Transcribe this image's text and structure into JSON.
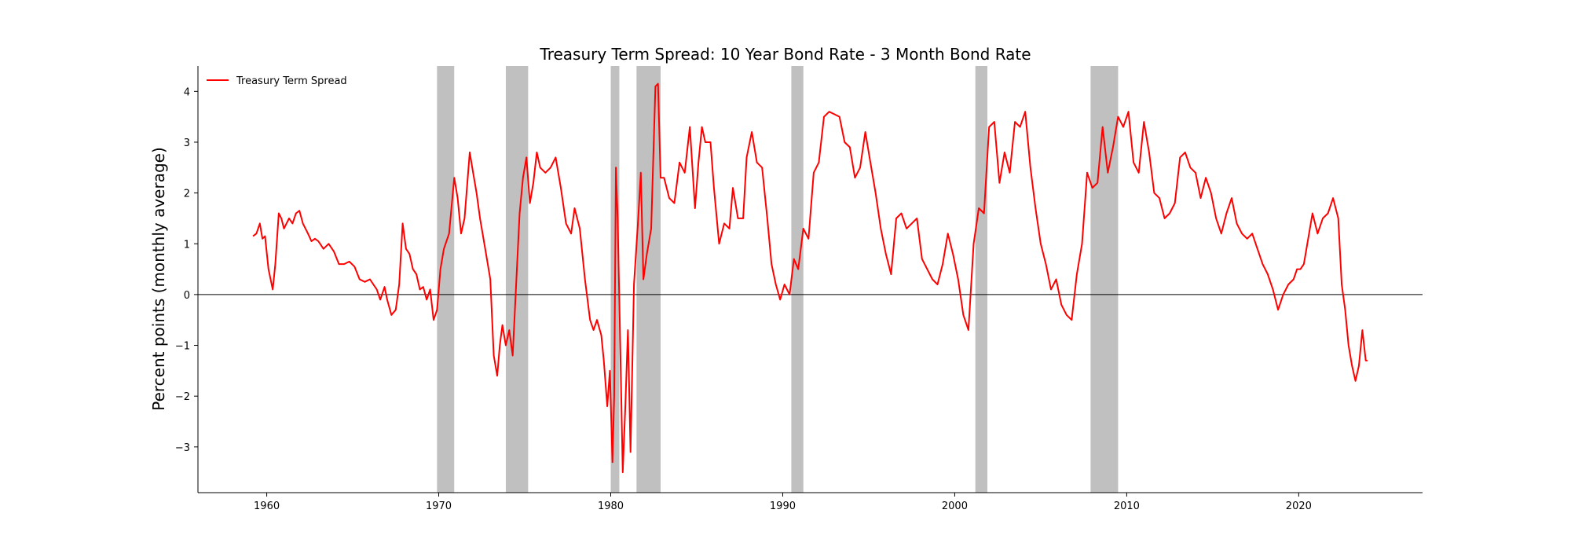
{
  "chart_data": {
    "type": "line",
    "title": "Treasury Term Spread: 10 Year Bond Rate - 3 Month Bond Rate",
    "xlabel": "",
    "ylabel": "Percent points (monthly average)",
    "xlim": [
      1956,
      2027.2
    ],
    "ylim": [
      -3.9,
      4.5
    ],
    "xticks": [
      1960,
      1970,
      1980,
      1990,
      2000,
      2010,
      2020
    ],
    "yticks": [
      -3,
      -2,
      -1,
      0,
      1,
      2,
      3,
      4
    ],
    "xtick_labels": [
      "1960",
      "1970",
      "1980",
      "1990",
      "2000",
      "2010",
      "2020"
    ],
    "ytick_labels": [
      "−3",
      "−2",
      "−1",
      "0",
      "1",
      "2",
      "3",
      "4"
    ],
    "legend": {
      "position": "top-left",
      "entries": [
        "Treasury Term Spread"
      ]
    },
    "reference_line": {
      "y": 0,
      "color": "#000000"
    },
    "colors": {
      "series": "#ff0000",
      "recession": "#c0c0c0",
      "axis": "#000000"
    },
    "recessions": [
      {
        "start": 1969.9,
        "end": 1970.9
      },
      {
        "start": 1973.9,
        "end": 1975.2
      },
      {
        "start": 1980.0,
        "end": 1980.5
      },
      {
        "start": 1981.5,
        "end": 1982.9
      },
      {
        "start": 1990.5,
        "end": 1991.2
      },
      {
        "start": 2001.2,
        "end": 2001.9
      },
      {
        "start": 2007.9,
        "end": 2009.5
      }
    ],
    "series": [
      {
        "name": "Treasury Term Spread",
        "x": [
          1959.2,
          1959.4,
          1959.6,
          1959.75,
          1959.9,
          1960.1,
          1960.35,
          1960.5,
          1960.7,
          1960.85,
          1961.0,
          1961.3,
          1961.5,
          1961.7,
          1961.9,
          1962.1,
          1962.4,
          1962.6,
          1962.8,
          1963.0,
          1963.3,
          1963.6,
          1963.9,
          1964.2,
          1964.5,
          1964.8,
          1965.1,
          1965.4,
          1965.7,
          1966.0,
          1966.2,
          1966.4,
          1966.6,
          1966.85,
          1967.0,
          1967.25,
          1967.5,
          1967.7,
          1967.9,
          1968.1,
          1968.3,
          1968.5,
          1968.7,
          1968.9,
          1969.1,
          1969.3,
          1969.5,
          1969.7,
          1969.9,
          1970.1,
          1970.3,
          1970.6,
          1970.9,
          1971.1,
          1971.3,
          1971.5,
          1971.8,
          1972.0,
          1972.2,
          1972.4,
          1972.7,
          1973.0,
          1973.2,
          1973.4,
          1973.55,
          1973.7,
          1973.9,
          1974.1,
          1974.3,
          1974.5,
          1974.7,
          1974.9,
          1975.1,
          1975.3,
          1975.5,
          1975.7,
          1975.9,
          1976.2,
          1976.5,
          1976.8,
          1977.1,
          1977.4,
          1977.7,
          1977.9,
          1978.2,
          1978.5,
          1978.8,
          1979.0,
          1979.2,
          1979.45,
          1979.6,
          1979.8,
          1979.95,
          1980.1,
          1980.2,
          1980.3,
          1980.4,
          1980.55,
          1980.7,
          1980.85,
          1981.0,
          1981.15,
          1981.35,
          1981.6,
          1981.75,
          1981.9,
          1982.1,
          1982.35,
          1982.6,
          1982.75,
          1982.9,
          1983.1,
          1983.4,
          1983.7,
          1984.0,
          1984.3,
          1984.6,
          1984.9,
          1985.1,
          1985.3,
          1985.5,
          1985.8,
          1986.0,
          1986.3,
          1986.6,
          1986.9,
          1987.1,
          1987.4,
          1987.7,
          1987.9,
          1988.2,
          1988.5,
          1988.8,
          1989.1,
          1989.35,
          1989.6,
          1989.85,
          1990.1,
          1990.4,
          1990.65,
          1990.9,
          1991.2,
          1991.5,
          1991.8,
          1992.1,
          1992.4,
          1992.7,
          1993.0,
          1993.3,
          1993.6,
          1993.9,
          1994.2,
          1994.5,
          1994.8,
          1995.1,
          1995.4,
          1995.7,
          1996.0,
          1996.3,
          1996.6,
          1996.9,
          1997.2,
          1997.5,
          1997.8,
          1998.1,
          1998.4,
          1998.7,
          1999.0,
          1999.3,
          1999.6,
          1999.9,
          2000.2,
          2000.5,
          2000.8,
          2001.1,
          2001.4,
          2001.7,
          2002.0,
          2002.3,
          2002.6,
          2002.9,
          2003.2,
          2003.5,
          2003.8,
          2004.1,
          2004.4,
          2004.7,
          2005.0,
          2005.3,
          2005.6,
          2005.9,
          2006.2,
          2006.5,
          2006.8,
          2007.1,
          2007.4,
          2007.7,
          2008.0,
          2008.3,
          2008.6,
          2008.9,
          2009.2,
          2009.5,
          2009.8,
          2010.1,
          2010.4,
          2010.7,
          2011.0,
          2011.3,
          2011.6,
          2011.9,
          2012.2,
          2012.5,
          2012.8,
          2013.1,
          2013.4,
          2013.7,
          2014.0,
          2014.3,
          2014.6,
          2014.9,
          2015.2,
          2015.5,
          2015.8,
          2016.1,
          2016.4,
          2016.7,
          2017.0,
          2017.3,
          2017.6,
          2017.9,
          2018.2,
          2018.5,
          2018.8,
          2019.1,
          2019.4,
          2019.7,
          2019.9,
          2020.1,
          2020.3,
          2020.5,
          2020.8,
          2021.1,
          2021.4,
          2021.7,
          2022.0,
          2022.3,
          2022.5,
          2022.7,
          2022.9,
          2023.1,
          2023.3,
          2023.5,
          2023.7,
          2023.9,
          2024.0
        ],
        "y": [
          1.15,
          1.2,
          1.4,
          1.1,
          1.15,
          0.5,
          0.1,
          0.6,
          1.6,
          1.5,
          1.3,
          1.5,
          1.4,
          1.6,
          1.65,
          1.4,
          1.2,
          1.05,
          1.1,
          1.05,
          0.9,
          1.0,
          0.85,
          0.6,
          0.6,
          0.65,
          0.55,
          0.3,
          0.25,
          0.3,
          0.2,
          0.1,
          -0.1,
          0.15,
          -0.1,
          -0.4,
          -0.3,
          0.2,
          1.4,
          0.9,
          0.8,
          0.5,
          0.4,
          0.1,
          0.15,
          -0.1,
          0.1,
          -0.5,
          -0.3,
          0.5,
          0.9,
          1.2,
          2.3,
          1.9,
          1.2,
          1.5,
          2.8,
          2.4,
          2.0,
          1.5,
          0.9,
          0.3,
          -1.2,
          -1.6,
          -1.0,
          -0.6,
          -1.0,
          -0.7,
          -1.2,
          0.2,
          1.6,
          2.3,
          2.7,
          1.8,
          2.2,
          2.8,
          2.5,
          2.4,
          2.5,
          2.7,
          2.1,
          1.4,
          1.2,
          1.7,
          1.3,
          0.3,
          -0.5,
          -0.7,
          -0.5,
          -0.8,
          -1.3,
          -2.2,
          -1.5,
          -3.3,
          -2.0,
          2.5,
          1.5,
          -0.9,
          -3.5,
          -2.2,
          -0.7,
          -3.1,
          0.2,
          1.5,
          2.4,
          0.3,
          0.8,
          1.3,
          4.1,
          4.15,
          2.3,
          2.3,
          1.9,
          1.8,
          2.6,
          2.4,
          3.3,
          1.7,
          2.6,
          3.3,
          3.0,
          3.0,
          2.1,
          1.0,
          1.4,
          1.3,
          2.1,
          1.5,
          1.5,
          2.7,
          3.2,
          2.6,
          2.5,
          1.5,
          0.6,
          0.2,
          -0.1,
          0.2,
          0.0,
          0.7,
          0.5,
          1.3,
          1.1,
          2.4,
          2.6,
          3.5,
          3.6,
          3.55,
          3.5,
          3.0,
          2.9,
          2.3,
          2.5,
          3.2,
          2.6,
          2.0,
          1.3,
          0.8,
          0.4,
          1.5,
          1.6,
          1.3,
          1.4,
          1.5,
          0.7,
          0.5,
          0.3,
          0.2,
          0.6,
          1.2,
          0.8,
          0.3,
          -0.4,
          -0.7,
          1.0,
          1.7,
          1.6,
          3.3,
          3.4,
          2.2,
          2.8,
          2.4,
          3.4,
          3.3,
          3.6,
          2.5,
          1.7,
          1.0,
          0.6,
          0.1,
          0.3,
          -0.2,
          -0.4,
          -0.5,
          0.4,
          1.0,
          2.4,
          2.1,
          2.2,
          3.3,
          2.4,
          2.9,
          3.5,
          3.3,
          3.6,
          2.6,
          2.4,
          3.4,
          2.8,
          2.0,
          1.9,
          1.5,
          1.6,
          1.8,
          2.7,
          2.8,
          2.5,
          2.4,
          1.9,
          2.3,
          2.0,
          1.5,
          1.2,
          1.6,
          1.9,
          1.4,
          1.2,
          1.1,
          1.2,
          0.9,
          0.6,
          0.4,
          0.1,
          -0.3,
          0.0,
          0.2,
          0.3,
          0.5,
          0.5,
          0.6,
          1.0,
          1.6,
          1.2,
          1.5,
          1.6,
          1.9,
          1.5,
          0.2,
          -0.3,
          -1.0,
          -1.4,
          -1.7,
          -1.4,
          -0.7,
          -1.3,
          -1.3
        ]
      }
    ]
  }
}
